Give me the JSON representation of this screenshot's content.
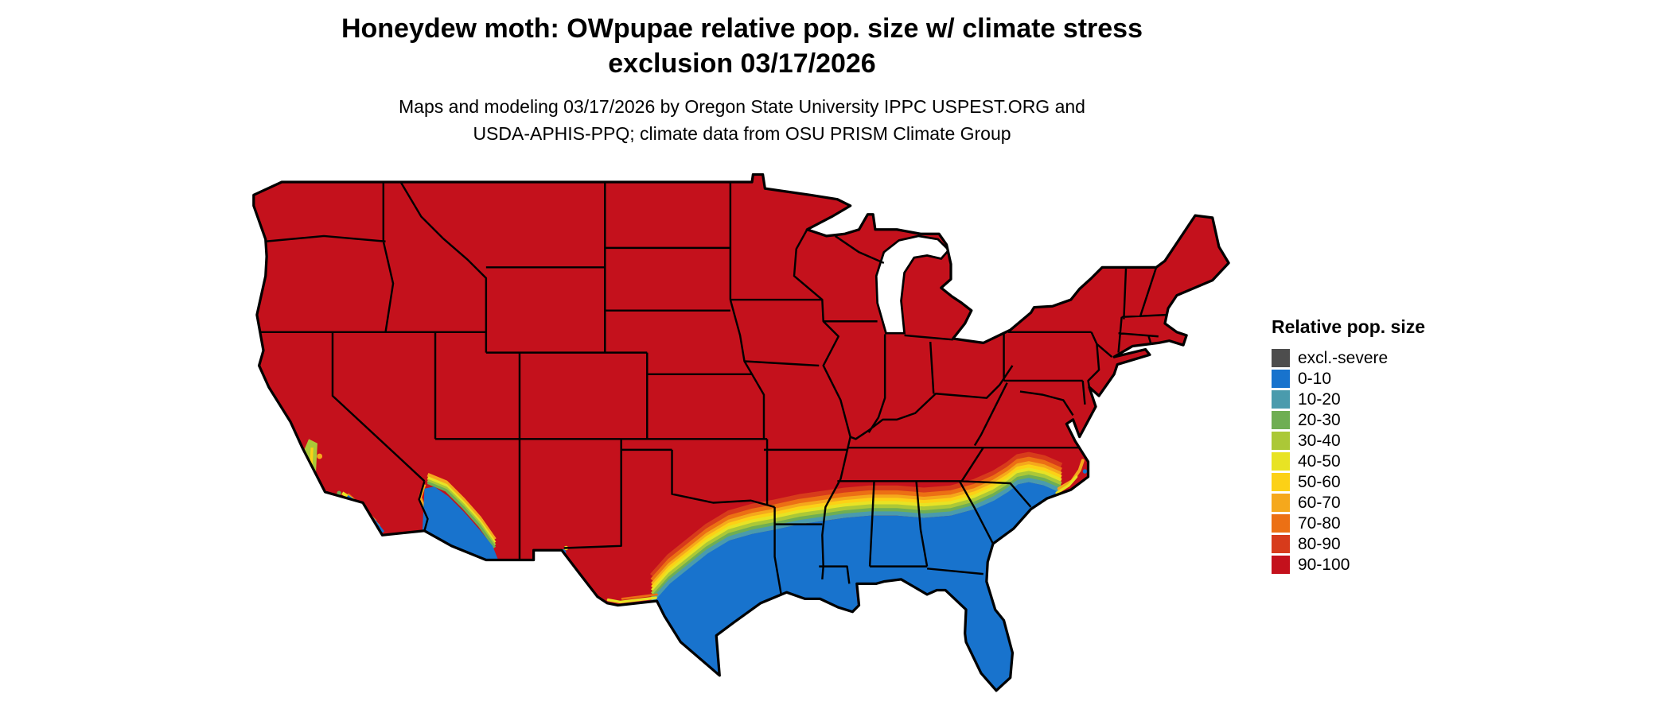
{
  "figure": {
    "title_line1": "Honeydew moth: OWpupae relative pop. size w/ climate stress",
    "title_line2": "exclusion 03/17/2026",
    "subtitle_line1": "Maps and modeling 03/17/2026 by Oregon State University IPPC USPEST.ORG and",
    "subtitle_line2": "USDA-APHIS-PPQ; climate data from OSU PRISM Climate Group"
  },
  "legend": {
    "title": "Relative pop. size",
    "entries": [
      {
        "label": "excl.-severe",
        "color": "#4d4d4d"
      },
      {
        "label": "0-10",
        "color": "#1873cd"
      },
      {
        "label": "10-20",
        "color": "#4a9bad"
      },
      {
        "label": "20-30",
        "color": "#6fae53"
      },
      {
        "label": "30-40",
        "color": "#abc837"
      },
      {
        "label": "40-50",
        "color": "#e8e324"
      },
      {
        "label": "50-60",
        "color": "#fcd116"
      },
      {
        "label": "60-70",
        "color": "#f5a81c"
      },
      {
        "label": "70-80",
        "color": "#ec7014"
      },
      {
        "label": "80-90",
        "color": "#d73b1b"
      },
      {
        "label": "90-100",
        "color": "#c4111c"
      }
    ]
  },
  "map": {
    "region": "Continental United States",
    "outline_color": "#000000",
    "water_color": "#ffffff"
  }
}
